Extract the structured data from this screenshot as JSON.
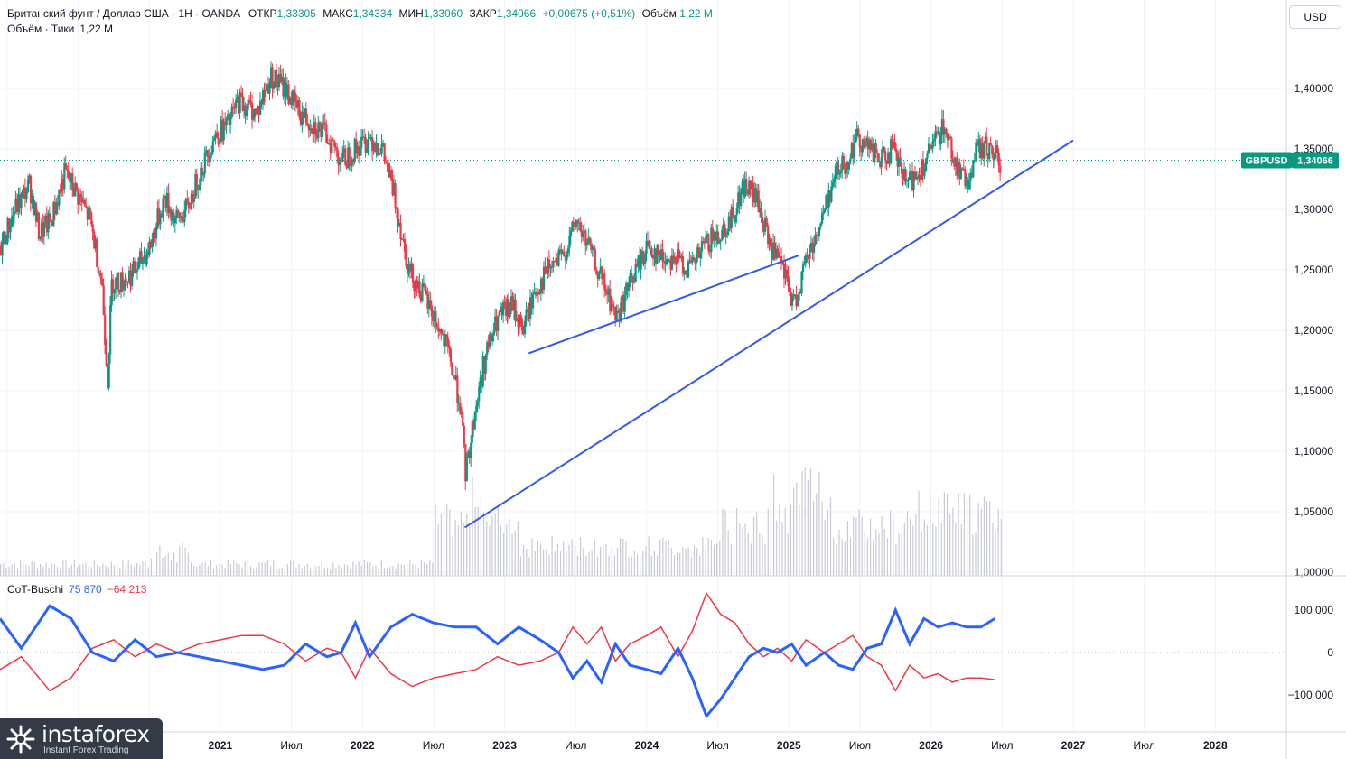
{
  "header": {
    "symbol": "Британский фунт / Доллар США · 1Н · OANDA",
    "open_label": "ОТКР",
    "open": "1,33305",
    "high_label": "МАКС",
    "high": "1,34334",
    "low_label": "МИН",
    "low": "1,33060",
    "close_label": "ЗАКР",
    "close": "1,34066",
    "change": "+0,00675 (+0,51%)",
    "volume_label": "Объём",
    "volume": "1,22 M"
  },
  "subheader": {
    "label": "Объём · Тики",
    "value": "1,22 M"
  },
  "indicator": {
    "label": "CoT-Buschi",
    "blue_value": "75 870",
    "red_value": "−64 213"
  },
  "currency_button": "USD",
  "price_tag": {
    "symbol": "GBPUSD",
    "value": "1,34066"
  },
  "logo": {
    "name": "instaforex",
    "tagline": "Instant Forex Trading"
  },
  "colors": {
    "up": "#089981",
    "down": "#f23645",
    "trendline": "#2f5bea",
    "cot_blue": "#2962ff",
    "cot_red": "#f23645",
    "volume": "#c8cbd2"
  },
  "chart_data": {
    "type": "candlestick",
    "y_axis": {
      "ticks": [
        "1,00000",
        "1,05000",
        "1,10000",
        "1,15000",
        "1,20000",
        "1,25000",
        "1,30000",
        "1,35000",
        "1,40000"
      ],
      "range": [
        1.0,
        1.44
      ]
    },
    "x_axis": {
      "ticks": [
        "Июл",
        "2021",
        "Июл",
        "2022",
        "Июл",
        "2023",
        "Июл",
        "2024",
        "Июл",
        "2025",
        "Июл",
        "2026",
        "Июл",
        "2027",
        "Июл",
        "2028"
      ]
    },
    "price_path": [
      [
        2019.45,
        1.27
      ],
      [
        2019.55,
        1.3
      ],
      [
        2019.65,
        1.32
      ],
      [
        2019.72,
        1.28
      ],
      [
        2019.8,
        1.29
      ],
      [
        2019.9,
        1.33
      ],
      [
        2020.0,
        1.31
      ],
      [
        2020.08,
        1.29
      ],
      [
        2020.16,
        1.24
      ],
      [
        2020.2,
        1.16
      ],
      [
        2020.23,
        1.24
      ],
      [
        2020.3,
        1.24
      ],
      [
        2020.4,
        1.25
      ],
      [
        2020.5,
        1.27
      ],
      [
        2020.6,
        1.31
      ],
      [
        2020.68,
        1.29
      ],
      [
        2020.76,
        1.3
      ],
      [
        2020.85,
        1.33
      ],
      [
        2020.95,
        1.36
      ],
      [
        2021.05,
        1.37
      ],
      [
        2021.12,
        1.39
      ],
      [
        2021.25,
        1.38
      ],
      [
        2021.35,
        1.41
      ],
      [
        2021.45,
        1.4
      ],
      [
        2021.55,
        1.38
      ],
      [
        2021.65,
        1.37
      ],
      [
        2021.75,
        1.36
      ],
      [
        2021.85,
        1.34
      ],
      [
        2021.95,
        1.35
      ],
      [
        2022.05,
        1.36
      ],
      [
        2022.13,
        1.35
      ],
      [
        2022.22,
        1.31
      ],
      [
        2022.32,
        1.25
      ],
      [
        2022.42,
        1.23
      ],
      [
        2022.5,
        1.21
      ],
      [
        2022.6,
        1.18
      ],
      [
        2022.68,
        1.14
      ],
      [
        2022.72,
        1.08
      ],
      [
        2022.78,
        1.13
      ],
      [
        2022.86,
        1.18
      ],
      [
        2022.95,
        1.21
      ],
      [
        2023.05,
        1.22
      ],
      [
        2023.12,
        1.2
      ],
      [
        2023.2,
        1.23
      ],
      [
        2023.3,
        1.25
      ],
      [
        2023.4,
        1.26
      ],
      [
        2023.5,
        1.29
      ],
      [
        2023.58,
        1.27
      ],
      [
        2023.68,
        1.24
      ],
      [
        2023.78,
        1.21
      ],
      [
        2023.88,
        1.24
      ],
      [
        2024.0,
        1.27
      ],
      [
        2024.1,
        1.26
      ],
      [
        2024.2,
        1.26
      ],
      [
        2024.3,
        1.25
      ],
      [
        2024.4,
        1.27
      ],
      [
        2024.5,
        1.28
      ],
      [
        2024.58,
        1.29
      ],
      [
        2024.68,
        1.32
      ],
      [
        2024.76,
        1.31
      ],
      [
        2024.86,
        1.27
      ],
      [
        2024.95,
        1.25
      ],
      [
        2025.03,
        1.22
      ],
      [
        2025.12,
        1.26
      ],
      [
        2025.22,
        1.29
      ],
      [
        2025.32,
        1.33
      ],
      [
        2025.4,
        1.34
      ],
      [
        2025.48,
        1.36
      ],
      [
        2025.56,
        1.35
      ],
      [
        2025.64,
        1.34
      ],
      [
        2025.72,
        1.35
      ],
      [
        2025.82,
        1.32
      ],
      [
        2025.9,
        1.33
      ],
      [
        2026.0,
        1.35
      ],
      [
        2026.08,
        1.37
      ],
      [
        2026.16,
        1.34
      ],
      [
        2026.24,
        1.32
      ],
      [
        2026.32,
        1.35
      ],
      [
        2026.4,
        1.35
      ],
      [
        2026.48,
        1.34
      ]
    ],
    "trendlines": [
      {
        "from": [
          2022.72,
          1.037
        ],
        "to": [
          2027.0,
          1.357
        ]
      },
      {
        "from": [
          2023.17,
          1.181
        ],
        "to": [
          2025.07,
          1.262
        ]
      }
    ],
    "cot": {
      "range": [
        -150000,
        150000
      ],
      "ticks": [
        "100 000",
        "0",
        "−100 000"
      ],
      "blue": [
        [
          2019.45,
          80000
        ],
        [
          2019.6,
          10000
        ],
        [
          2019.8,
          110000
        ],
        [
          2019.95,
          80000
        ],
        [
          2020.1,
          0
        ],
        [
          2020.25,
          -20000
        ],
        [
          2020.4,
          30000
        ],
        [
          2020.55,
          -10000
        ],
        [
          2020.7,
          0
        ],
        [
          2020.85,
          -10000
        ],
        [
          2021.0,
          -20000
        ],
        [
          2021.15,
          -30000
        ],
        [
          2021.3,
          -40000
        ],
        [
          2021.45,
          -30000
        ],
        [
          2021.6,
          20000
        ],
        [
          2021.75,
          -10000
        ],
        [
          2021.85,
          0
        ],
        [
          2021.95,
          70000
        ],
        [
          2022.05,
          -10000
        ],
        [
          2022.2,
          60000
        ],
        [
          2022.35,
          90000
        ],
        [
          2022.5,
          70000
        ],
        [
          2022.65,
          60000
        ],
        [
          2022.8,
          60000
        ],
        [
          2022.95,
          20000
        ],
        [
          2023.1,
          60000
        ],
        [
          2023.25,
          30000
        ],
        [
          2023.38,
          0
        ],
        [
          2023.48,
          -60000
        ],
        [
          2023.58,
          -20000
        ],
        [
          2023.68,
          -70000
        ],
        [
          2023.78,
          20000
        ],
        [
          2023.88,
          -30000
        ],
        [
          2024.0,
          -40000
        ],
        [
          2024.1,
          -50000
        ],
        [
          2024.22,
          10000
        ],
        [
          2024.32,
          -60000
        ],
        [
          2024.42,
          -150000
        ],
        [
          2024.52,
          -110000
        ],
        [
          2024.62,
          -60000
        ],
        [
          2024.72,
          -10000
        ],
        [
          2024.82,
          10000
        ],
        [
          2024.92,
          0
        ],
        [
          2025.02,
          20000
        ],
        [
          2025.12,
          -30000
        ],
        [
          2025.25,
          0
        ],
        [
          2025.35,
          -30000
        ],
        [
          2025.45,
          -40000
        ],
        [
          2025.55,
          10000
        ],
        [
          2025.65,
          20000
        ],
        [
          2025.75,
          100000
        ],
        [
          2025.85,
          20000
        ],
        [
          2025.95,
          80000
        ],
        [
          2026.05,
          60000
        ],
        [
          2026.15,
          70000
        ],
        [
          2026.25,
          60000
        ],
        [
          2026.35,
          60000
        ],
        [
          2026.45,
          80000
        ]
      ],
      "red": [
        [
          2019.45,
          -40000
        ],
        [
          2019.6,
          -10000
        ],
        [
          2019.8,
          -90000
        ],
        [
          2019.95,
          -60000
        ],
        [
          2020.1,
          10000
        ],
        [
          2020.25,
          30000
        ],
        [
          2020.4,
          -10000
        ],
        [
          2020.55,
          20000
        ],
        [
          2020.7,
          0
        ],
        [
          2020.85,
          20000
        ],
        [
          2021.0,
          30000
        ],
        [
          2021.15,
          40000
        ],
        [
          2021.3,
          40000
        ],
        [
          2021.45,
          20000
        ],
        [
          2021.6,
          -20000
        ],
        [
          2021.75,
          10000
        ],
        [
          2021.85,
          0
        ],
        [
          2021.95,
          -60000
        ],
        [
          2022.05,
          10000
        ],
        [
          2022.2,
          -50000
        ],
        [
          2022.35,
          -80000
        ],
        [
          2022.5,
          -60000
        ],
        [
          2022.65,
          -50000
        ],
        [
          2022.8,
          -40000
        ],
        [
          2022.95,
          -10000
        ],
        [
          2023.1,
          -30000
        ],
        [
          2023.25,
          -20000
        ],
        [
          2023.38,
          0
        ],
        [
          2023.48,
          60000
        ],
        [
          2023.58,
          20000
        ],
        [
          2023.68,
          60000
        ],
        [
          2023.78,
          -20000
        ],
        [
          2023.88,
          20000
        ],
        [
          2024.0,
          40000
        ],
        [
          2024.1,
          60000
        ],
        [
          2024.22,
          -10000
        ],
        [
          2024.32,
          50000
        ],
        [
          2024.42,
          140000
        ],
        [
          2024.52,
          90000
        ],
        [
          2024.62,
          70000
        ],
        [
          2024.72,
          20000
        ],
        [
          2024.82,
          -10000
        ],
        [
          2024.92,
          10000
        ],
        [
          2025.02,
          -20000
        ],
        [
          2025.12,
          30000
        ],
        [
          2025.25,
          0
        ],
        [
          2025.35,
          20000
        ],
        [
          2025.45,
          40000
        ],
        [
          2025.55,
          -10000
        ],
        [
          2025.65,
          -30000
        ],
        [
          2025.75,
          -90000
        ],
        [
          2025.85,
          -30000
        ],
        [
          2025.95,
          -60000
        ],
        [
          2026.05,
          -50000
        ],
        [
          2026.15,
          -70000
        ],
        [
          2026.25,
          -60000
        ],
        [
          2026.35,
          -60000
        ],
        [
          2026.45,
          -64000
        ]
      ]
    }
  }
}
